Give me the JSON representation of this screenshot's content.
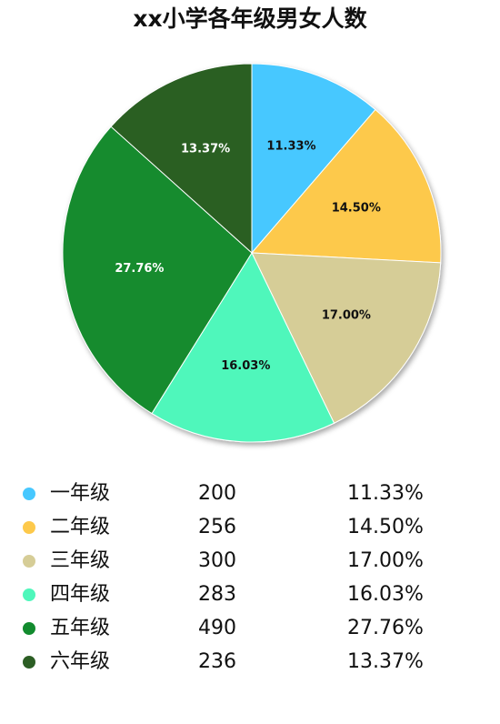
{
  "chart_data": {
    "type": "pie",
    "title": "xx小学各年级男女人数",
    "slices": [
      {
        "label": "一年级",
        "value": 200,
        "percent": "11.33%",
        "color": "#47c8ff",
        "text_color": "#111111"
      },
      {
        "label": "二年级",
        "value": 256,
        "percent": "14.50%",
        "color": "#fdc94b",
        "text_color": "#111111"
      },
      {
        "label": "三年级",
        "value": 300,
        "percent": "17.00%",
        "color": "#d6cd97",
        "text_color": "#111111"
      },
      {
        "label": "四年级",
        "value": 283,
        "percent": "16.03%",
        "color": "#4ff7bb",
        "text_color": "#111111"
      },
      {
        "label": "五年级",
        "value": 490,
        "percent": "27.76%",
        "color": "#128b2e",
        "text_color": "#ffffff"
      },
      {
        "label": "六年级",
        "value": 236,
        "percent": "13.37%",
        "color": "#2c5e24",
        "text_color": "#ffffff"
      }
    ]
  }
}
